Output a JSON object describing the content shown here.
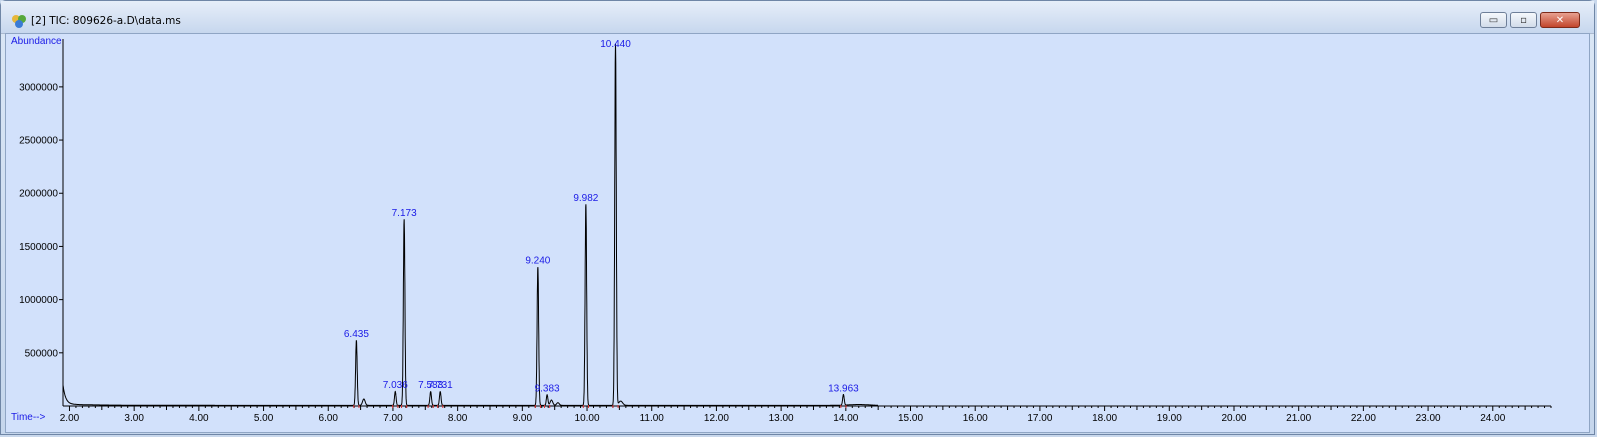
{
  "window": {
    "title": "[2] TIC: 809626-a.D\\data.ms",
    "minimize_label": "▭",
    "restore_label": "▫",
    "close_label": "✕"
  },
  "chart_data": {
    "type": "line",
    "title": "",
    "ylabel": "Abundance",
    "xlabel": "Time-->",
    "xlim": [
      1.9,
      24.9
    ],
    "ylim": [
      0,
      3450000
    ],
    "x_ticks": [
      "2.00",
      "3.00",
      "4.00",
      "5.00",
      "6.00",
      "7.00",
      "8.00",
      "9.00",
      "10.00",
      "11.00",
      "12.00",
      "13.00",
      "14.00",
      "15.00",
      "16.00",
      "17.00",
      "18.00",
      "19.00",
      "20.00",
      "21.00",
      "22.00",
      "23.00",
      "24.00"
    ],
    "y_ticks": [
      "500000",
      "1000000",
      "1500000",
      "2000000",
      "2500000",
      "3000000"
    ],
    "y_tick_values": [
      500000,
      1000000,
      1500000,
      2000000,
      2500000,
      3000000
    ],
    "x_tick_values": [
      2,
      3,
      4,
      5,
      6,
      7,
      8,
      9,
      10,
      11,
      12,
      13,
      14,
      15,
      16,
      17,
      18,
      19,
      20,
      21,
      22,
      23,
      24
    ],
    "peaks": [
      {
        "rt": 6.435,
        "label": "6.435",
        "height": 610000
      },
      {
        "rt": 7.036,
        "label": "7.036",
        "height": 130000
      },
      {
        "rt": 7.173,
        "label": "7.173",
        "height": 1750000
      },
      {
        "rt": 7.583,
        "label": "7.583",
        "height": 130000
      },
      {
        "rt": 7.731,
        "label": "7.731",
        "height": 130000
      },
      {
        "rt": 9.24,
        "label": "9.240",
        "height": 1300000
      },
      {
        "rt": 9.383,
        "label": "9.383",
        "height": 100000
      },
      {
        "rt": 9.982,
        "label": "9.982",
        "height": 1890000
      },
      {
        "rt": 10.44,
        "label": "10.440",
        "height": 3400000
      },
      {
        "rt": 13.963,
        "label": "13.963",
        "height": 100000
      }
    ],
    "colors": {
      "trace": "#000000",
      "labels": "#1a1ae6",
      "background": "#d2e1fb",
      "baseline_marks": "#e03030"
    }
  }
}
